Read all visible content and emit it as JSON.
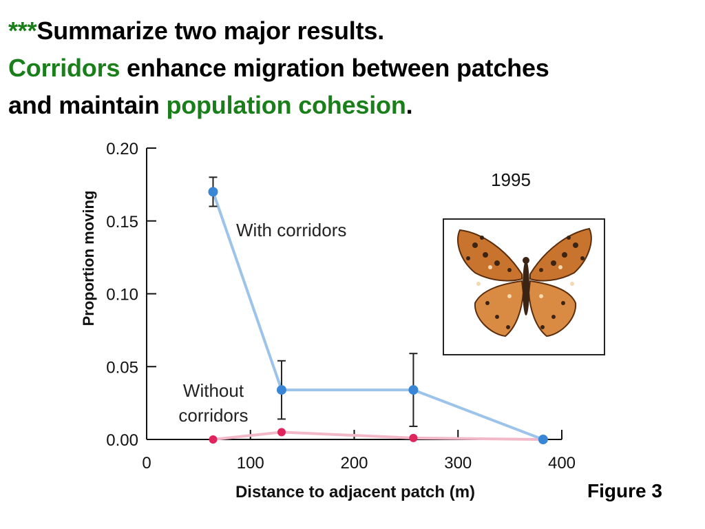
{
  "heading": {
    "stars": "***",
    "line1_text": "Summarize two major results.",
    "line2_highlight": "Corridors",
    "line2_text": " enhance migration between patches",
    "line3_text": "and maintain ",
    "line3_highlight": "population cohesion",
    "line3_end": "."
  },
  "figure_label": "Figure 3",
  "colors": {
    "highlight_green": "#1a7f1a",
    "with_corridors_marker": "#3a86d6",
    "with_corridors_line": "#9cc3ea",
    "without_corridors_marker": "#e0245e",
    "without_corridors_line": "#f2b8c8"
  },
  "chart_data": {
    "type": "line",
    "year_label": "1995",
    "xlabel": "Distance to adjacent patch (m)",
    "ylabel": "Proportion moving",
    "xlim": [
      0,
      400
    ],
    "ylim": [
      0,
      0.2
    ],
    "x_ticks": [
      0,
      100,
      200,
      300,
      400
    ],
    "y_ticks": [
      0.0,
      0.05,
      0.1,
      0.15,
      0.2
    ],
    "x_tick_labels": [
      "0",
      "100",
      "200",
      "300",
      "400"
    ],
    "y_tick_labels": [
      "0.00",
      "0.05",
      "0.10",
      "0.15",
      "0.20"
    ],
    "grid": false,
    "inset_image": "butterfly-photo",
    "series": [
      {
        "name": "With corridors",
        "x": [
          64,
          130,
          257,
          382
        ],
        "y": [
          0.17,
          0.034,
          0.034,
          0.0
        ],
        "error": [
          0.01,
          0.02,
          0.025,
          0.0
        ]
      },
      {
        "name": "Without corridors",
        "x": [
          64,
          130,
          257,
          382
        ],
        "y": [
          0.0,
          0.005,
          0.001,
          0.0
        ],
        "error": [
          0,
          0,
          0,
          0
        ]
      }
    ]
  }
}
